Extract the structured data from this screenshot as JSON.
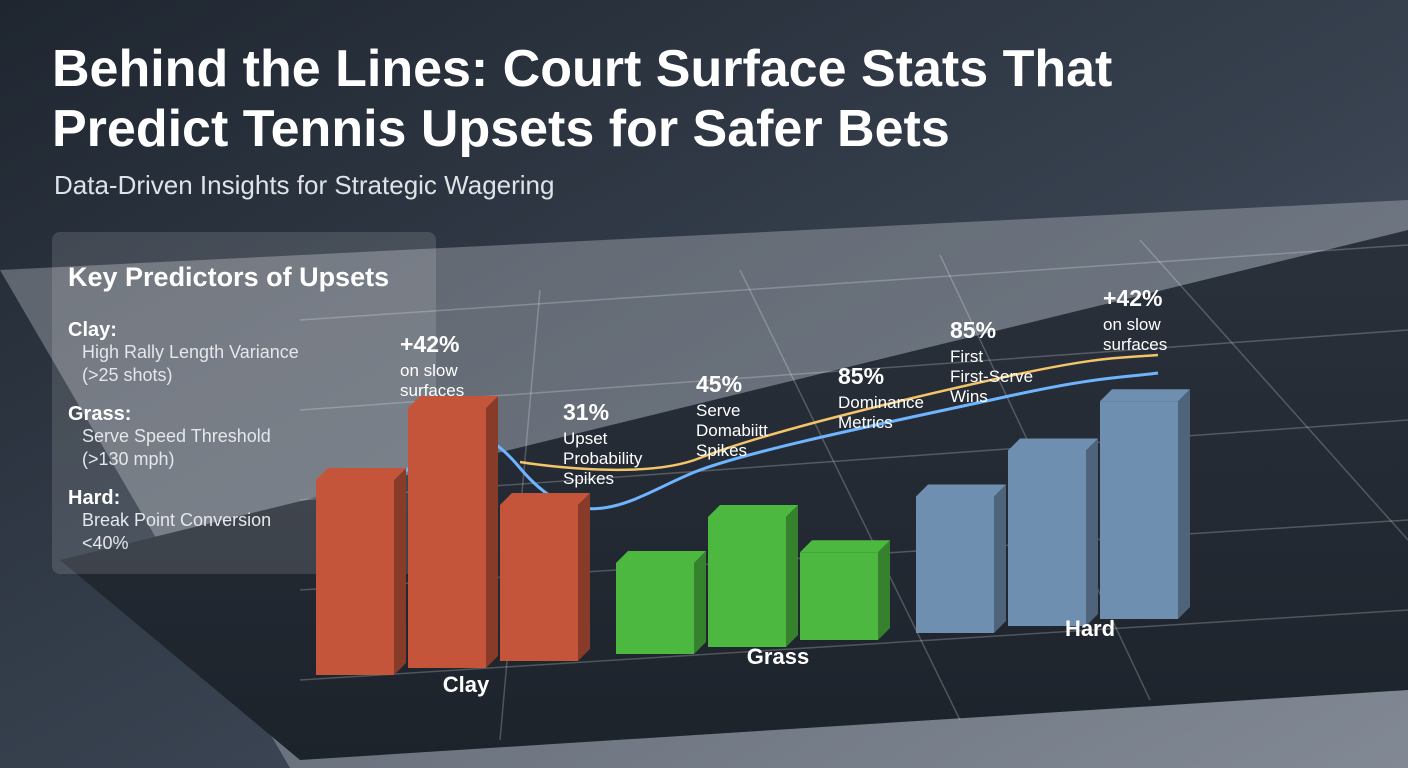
{
  "header": {
    "title": [
      "Behind the Lines: Court Surface Stats That",
      "Predict Tennis Upsets for Safer Bets"
    ],
    "subtitle": "Data-Driven Insights for Strategic Wagering"
  },
  "key_panel": {
    "title": "Key Predictors of Upsets",
    "items": [
      {
        "label": "Clay:",
        "lines": [
          "High Rally Length Variance",
          "(>25 shots)"
        ]
      },
      {
        "label": "Grass:",
        "lines": [
          "Serve Speed Threshold",
          "(>130 mph)"
        ]
      },
      {
        "label": "Hard:",
        "lines": [
          "Break Point Conversion",
          "<40%"
        ]
      }
    ]
  },
  "chart_data": {
    "type": "bar",
    "groups": [
      {
        "name": "Clay",
        "color": "#c4553a",
        "values": [
          60,
          80,
          48
        ]
      },
      {
        "name": "Grass",
        "color": "#4cb840",
        "values": [
          28,
          40,
          27
        ]
      },
      {
        "name": "Hard",
        "color": "#6f8fb0",
        "values": [
          42,
          54,
          67
        ]
      }
    ],
    "annotations": [
      [
        "+42%",
        "on slow",
        "surfaces"
      ],
      [
        "31%",
        "Upset",
        "Probability",
        "Spikes"
      ],
      [
        "45%",
        "Serve",
        "Domabiitt",
        "Spikes"
      ],
      [
        "85%",
        "Dominance",
        "Metrics"
      ],
      [
        "85%",
        "First",
        "First-Serve",
        "Wins"
      ],
      [
        "+42%",
        "on slow",
        "surfaces"
      ]
    ]
  }
}
